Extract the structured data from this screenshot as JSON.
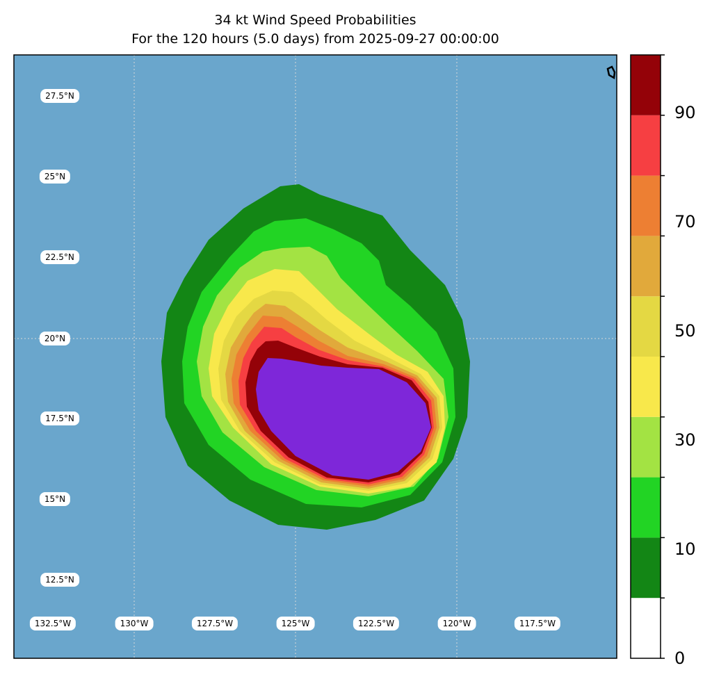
{
  "title": {
    "line1": "34 kt Wind Speed Probabilities",
    "line2": "For the 120 hours (5.0 days) from 2025-09-27 00:00:00"
  },
  "map": {
    "ocean_color": "#6aa6cc",
    "gridline_color": "#d8d8d8",
    "lat_labels": [
      "27.5°N",
      "25°N",
      "22.5°N",
      "20°N",
      "17.5°N",
      "15°N",
      "12.5°N"
    ],
    "lon_labels": [
      "132.5°W",
      "130°W",
      "127.5°W",
      "125°W",
      "122.5°W",
      "120°W",
      "117.5°W"
    ]
  },
  "colorbar": {
    "levels": [
      0,
      10,
      20,
      30,
      40,
      50,
      60,
      70,
      80,
      90,
      100
    ],
    "colors": [
      "#ffffff",
      "#138615",
      "#22d424",
      "#a3e343",
      "#f8e84b",
      "#e4d843",
      "#e1a93b",
      "#ed7f33",
      "#f63f42",
      "#940208",
      "#7e27d9"
    ],
    "tick_labels": [
      "0",
      "10",
      "30",
      "50",
      "70",
      "90"
    ]
  }
}
